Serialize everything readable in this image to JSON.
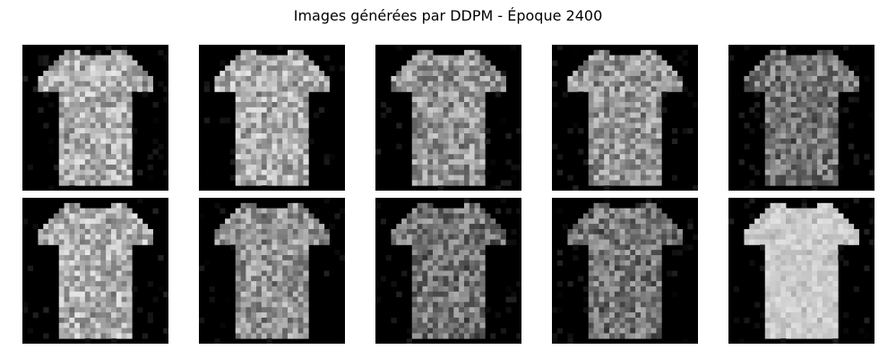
{
  "figure": {
    "title": "Images générées par DDPM - Époque 2400"
  },
  "samples": [
    {
      "row": 1,
      "col": 1,
      "subject": "t-shirt",
      "tone": "light"
    },
    {
      "row": 1,
      "col": 2,
      "subject": "t-shirt",
      "tone": "light"
    },
    {
      "row": 1,
      "col": 3,
      "subject": "t-shirt",
      "tone": "mixed"
    },
    {
      "row": 1,
      "col": 4,
      "subject": "t-shirt",
      "tone": "mixed"
    },
    {
      "row": 1,
      "col": 5,
      "subject": "t-shirt",
      "tone": "dark"
    },
    {
      "row": 2,
      "col": 1,
      "subject": "t-shirt",
      "tone": "light"
    },
    {
      "row": 2,
      "col": 2,
      "subject": "t-shirt",
      "tone": "mixed"
    },
    {
      "row": 2,
      "col": 3,
      "subject": "t-shirt",
      "tone": "dark"
    },
    {
      "row": 2,
      "col": 4,
      "subject": "t-shirt",
      "tone": "dark"
    },
    {
      "row": 2,
      "col": 5,
      "subject": "t-shirt",
      "tone": "bright"
    }
  ],
  "colors": {
    "background": "#ffffff",
    "tile_background": "#000000"
  }
}
